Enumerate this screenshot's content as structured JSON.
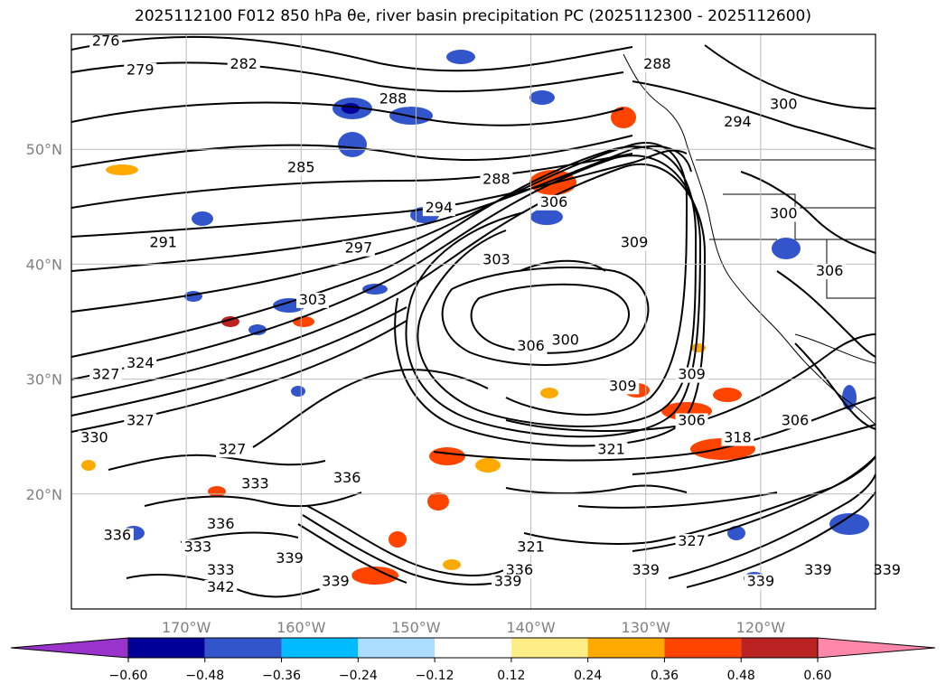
{
  "title": "2025112100 F012 850 hPa θe, river basin precipitation PC (2025112300 - 2025112600)",
  "lat_labels": [
    {
      "text": "50°N",
      "lat": 50
    },
    {
      "text": "40°N",
      "lat": 40
    },
    {
      "text": "30°N",
      "lat": 30
    },
    {
      "text": "20°N",
      "lat": 20
    }
  ],
  "lon_labels": [
    {
      "text": "170°W",
      "lon": -170
    },
    {
      "text": "160°W",
      "lon": -160
    },
    {
      "text": "150°W",
      "lon": -150
    },
    {
      "text": "140°W",
      "lon": -140
    },
    {
      "text": "130°W",
      "lon": -130
    },
    {
      "text": "120°W",
      "lon": -120
    }
  ],
  "colorbar": {
    "ticks": [
      "−0.60",
      "−0.48",
      "−0.36",
      "−0.24",
      "−0.12",
      "0.12",
      "0.24",
      "0.36",
      "0.48",
      "0.60"
    ],
    "colors": [
      "#9933cc",
      "#000099",
      "#3355cc",
      "#00bbff",
      "#aaddff",
      "#ffffff",
      "#ffee88",
      "#ffaa00",
      "#ff4400",
      "#bb2222",
      "#ff88aa"
    ]
  },
  "contour_labels": [
    {
      "text": "276",
      "lon": -177,
      "lat": 59
    },
    {
      "text": "279",
      "lon": -174,
      "lat": 56.5
    },
    {
      "text": "282",
      "lon": -165,
      "lat": 57
    },
    {
      "text": "288",
      "lon": -152,
      "lat": 54
    },
    {
      "text": "288",
      "lon": -129,
      "lat": 57
    },
    {
      "text": "285",
      "lon": -160,
      "lat": 48
    },
    {
      "text": "288",
      "lon": -143,
      "lat": 47
    },
    {
      "text": "306",
      "lon": -138,
      "lat": 45
    },
    {
      "text": "294",
      "lon": -122,
      "lat": 52
    },
    {
      "text": "300",
      "lon": -118,
      "lat": 53.5
    },
    {
      "text": "294",
      "lon": -148,
      "lat": 44.5
    },
    {
      "text": "291",
      "lon": -172,
      "lat": 41.5
    },
    {
      "text": "297",
      "lon": -155,
      "lat": 41
    },
    {
      "text": "309",
      "lon": -131,
      "lat": 41.5
    },
    {
      "text": "300",
      "lon": -118,
      "lat": 44
    },
    {
      "text": "303",
      "lon": -143,
      "lat": 40
    },
    {
      "text": "306",
      "lon": -114,
      "lat": 39
    },
    {
      "text": "303",
      "lon": -159,
      "lat": 36.5
    },
    {
      "text": "300",
      "lon": -137,
      "lat": 33
    },
    {
      "text": "306",
      "lon": -140,
      "lat": 32.5
    },
    {
      "text": "309",
      "lon": -126,
      "lat": 30
    },
    {
      "text": "309",
      "lon": -132,
      "lat": 29
    },
    {
      "text": "306",
      "lon": -126,
      "lat": 26
    },
    {
      "text": "321",
      "lon": -133,
      "lat": 23.5
    },
    {
      "text": "318",
      "lon": -122,
      "lat": 24.5
    },
    {
      "text": "306",
      "lon": -117,
      "lat": 26
    },
    {
      "text": "327",
      "lon": -177,
      "lat": 30
    },
    {
      "text": "324",
      "lon": -174,
      "lat": 31
    },
    {
      "text": "327",
      "lon": -174,
      "lat": 26
    },
    {
      "text": "330",
      "lon": -178,
      "lat": 24.5
    },
    {
      "text": "327",
      "lon": -166,
      "lat": 23.5
    },
    {
      "text": "336",
      "lon": -156,
      "lat": 21
    },
    {
      "text": "333",
      "lon": -164,
      "lat": 20.5
    },
    {
      "text": "336",
      "lon": -167,
      "lat": 17
    },
    {
      "text": "333",
      "lon": -169,
      "lat": 15
    },
    {
      "text": "336",
      "lon": -176,
      "lat": 16
    },
    {
      "text": "339",
      "lon": -161,
      "lat": 14
    },
    {
      "text": "333",
      "lon": -167,
      "lat": 13
    },
    {
      "text": "342",
      "lon": -167,
      "lat": 11.5
    },
    {
      "text": "339",
      "lon": -157,
      "lat": 12
    },
    {
      "text": "321",
      "lon": -140,
      "lat": 15
    },
    {
      "text": "327",
      "lon": -126,
      "lat": 15.5
    },
    {
      "text": "336",
      "lon": -141,
      "lat": 13
    },
    {
      "text": "339",
      "lon": -142,
      "lat": 12
    },
    {
      "text": "339",
      "lon": -130,
      "lat": 13
    },
    {
      "text": "339",
      "lon": -120,
      "lat": 12
    },
    {
      "text": "339",
      "lon": -115,
      "lat": 13
    },
    {
      "text": "339",
      "lon": -109,
      "lat": 13
    }
  ]
}
